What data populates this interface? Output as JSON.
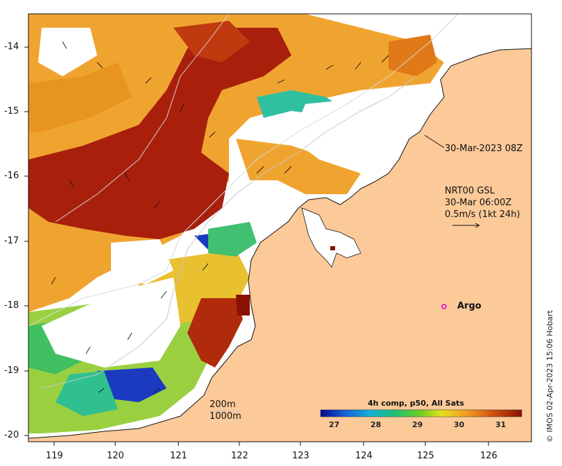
{
  "map": {
    "lon_ticks": [
      "119",
      "120",
      "121",
      "122",
      "123",
      "124",
      "125",
      "126"
    ],
    "lat_ticks": [
      "-14",
      "-15",
      "-16",
      "-17",
      "-18",
      "-19",
      "-20"
    ],
    "timestamp_label": "30-Mar-2023 08Z",
    "current_label_line1": "NRT00 GSL",
    "current_label_line2": "30-Mar 06:00Z",
    "current_label_line3": "0.5m/s (1kt 24h)",
    "argo_label": "Argo",
    "isobath_200": "200m",
    "isobath_1000": "1000m",
    "colorbar_title": "4h comp, p50, All Sats",
    "colorbar_ticks": [
      "27",
      "28",
      "29",
      "30",
      "31"
    ],
    "credit": "© IMOS 02-Apr-2023 15:06 Hobart",
    "colors": {
      "land": "#fcc998",
      "argo": "#e000e0"
    }
  }
}
